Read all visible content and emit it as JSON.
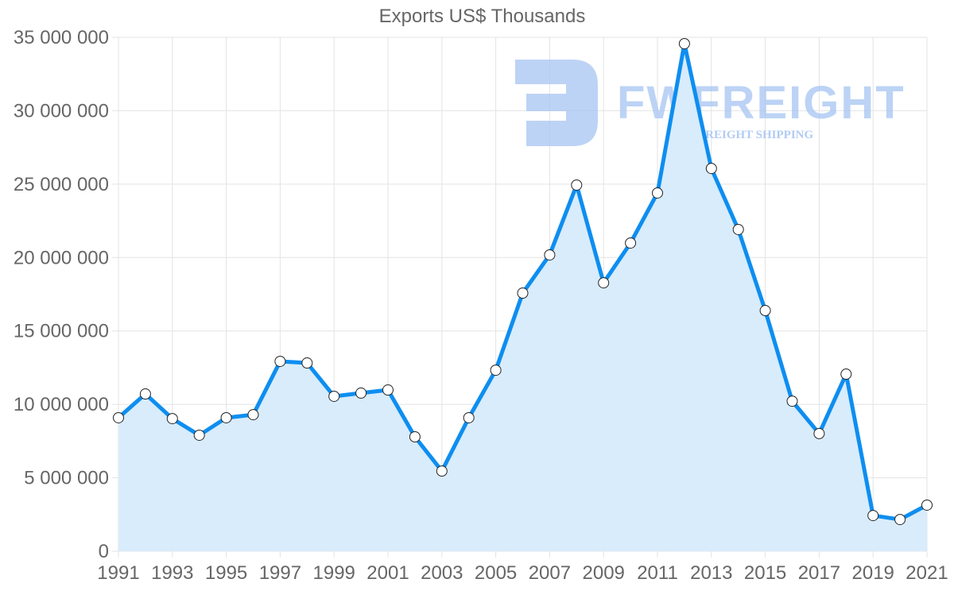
{
  "chart_data": {
    "type": "area",
    "title": "Exports US$ Thousands",
    "xlabel": "",
    "ylabel": "",
    "ylim": [
      0,
      35000000
    ],
    "grid": true,
    "legend": "none",
    "x": [
      1991,
      1992,
      1993,
      1994,
      1995,
      1996,
      1997,
      1998,
      1999,
      2000,
      2001,
      2002,
      2003,
      2004,
      2005,
      2006,
      2007,
      2008,
      2009,
      2010,
      2011,
      2012,
      2013,
      2014,
      2015,
      2016,
      2017,
      2018,
      2019,
      2020,
      2021
    ],
    "x_tick_labels": [
      "1991",
      "1993",
      "1995",
      "1997",
      "1999",
      "2001",
      "2003",
      "2005",
      "2007",
      "2009",
      "2011",
      "2013",
      "2015",
      "2017",
      "2019",
      "2021"
    ],
    "y_tick_labels": [
      "0",
      "5 000 000",
      "10 000 000",
      "15 000 000",
      "20 000 000",
      "25 000 000",
      "30 000 000",
      "35 000 000"
    ],
    "y_ticks": [
      0,
      5000000,
      10000000,
      15000000,
      20000000,
      25000000,
      30000000,
      35000000
    ],
    "series": [
      {
        "name": "Exports US$ Thousands",
        "values": [
          9090000,
          10710000,
          9030000,
          7900000,
          9090000,
          9300000,
          12930000,
          12820000,
          10550000,
          10770000,
          10980000,
          7790000,
          5460000,
          9090000,
          12330000,
          17580000,
          20180000,
          24940000,
          18280000,
          20990000,
          24400000,
          34570000,
          26070000,
          21910000,
          16390000,
          10220000,
          8010000,
          12060000,
          2430000,
          2160000,
          3140000
        ]
      }
    ],
    "colors": {
      "line": "#0e8ef0",
      "fill": "#d8ecfc",
      "point_fill": "#ffffff",
      "point_stroke": "#222222",
      "grid": "#e3e3e3",
      "text": "#666666"
    }
  },
  "watermark": {
    "brand": "FWFREIGHT",
    "tagline": "FREIGHT SHIPPING",
    "color": "#a9c6f2"
  }
}
